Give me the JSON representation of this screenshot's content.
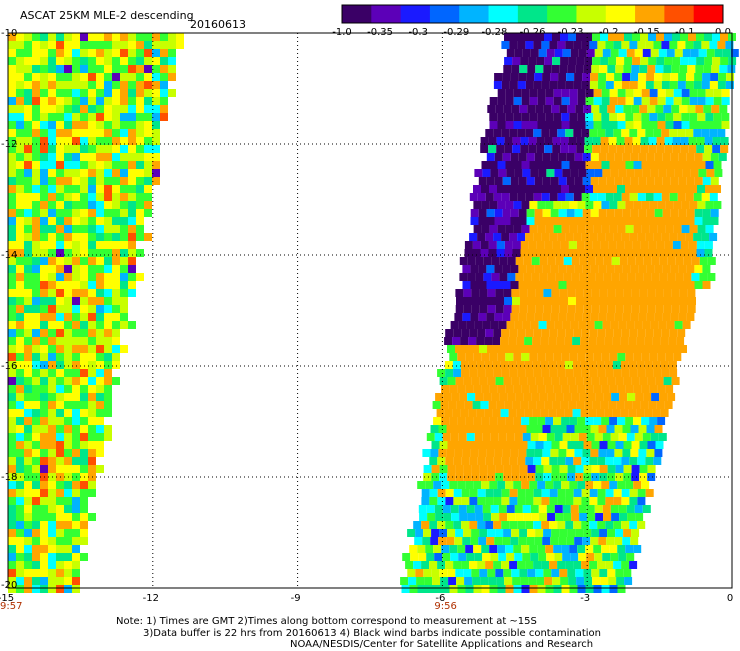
{
  "header": {
    "title": "ASCAT 25KM MLE-2 descending",
    "date": "20160613"
  },
  "colorbar": {
    "tick_labels": [
      "-1.0",
      "-0.35",
      "-0.3",
      "-0.29",
      "-0.28",
      "-0.26",
      "-0.23",
      "-0.2",
      "-0.15",
      "-0.1",
      "0.0"
    ],
    "colors": [
      "#3a0066",
      "#5c00b8",
      "#1a1aff",
      "#0066ff",
      "#00b4ff",
      "#00ffff",
      "#00e68a",
      "#33ff33",
      "#c8ff00",
      "#ffff00",
      "#ffa500",
      "#ff5000",
      "#ff0000"
    ]
  },
  "map": {
    "longitude_ticks": [
      {
        "value": -15,
        "label": "-15"
      },
      {
        "value": -12,
        "label": "-12"
      },
      {
        "value": -9,
        "label": "-9"
      },
      {
        "value": -6,
        "label": "-6"
      },
      {
        "value": -3,
        "label": "-3"
      },
      {
        "value": 0,
        "label": "0"
      }
    ],
    "latitude_ticks": [
      {
        "value": -10,
        "label": "-10"
      },
      {
        "value": -12,
        "label": "-12"
      },
      {
        "value": -14,
        "label": "-14"
      },
      {
        "value": -16,
        "label": "-16"
      },
      {
        "value": -18,
        "label": "-18"
      },
      {
        "value": -20,
        "label": "-20"
      }
    ],
    "lon_range": [
      -15,
      0
    ],
    "lat_range": [
      -20,
      -10
    ],
    "pass_times": [
      {
        "label": "9:57",
        "lon": -15
      },
      {
        "label": "9:56",
        "lon": -6
      }
    ]
  },
  "notes": {
    "line1": "Note: 1) Times are GMT 2)Times along bottom correspond to measurement at ~15S",
    "line2": "3)Data buffer is 22 hrs from 20160613 4) Black wind barbs indicate possible contamination",
    "line3": "NOAA/NESDIS/Center for Satellite Applications and Research"
  }
}
